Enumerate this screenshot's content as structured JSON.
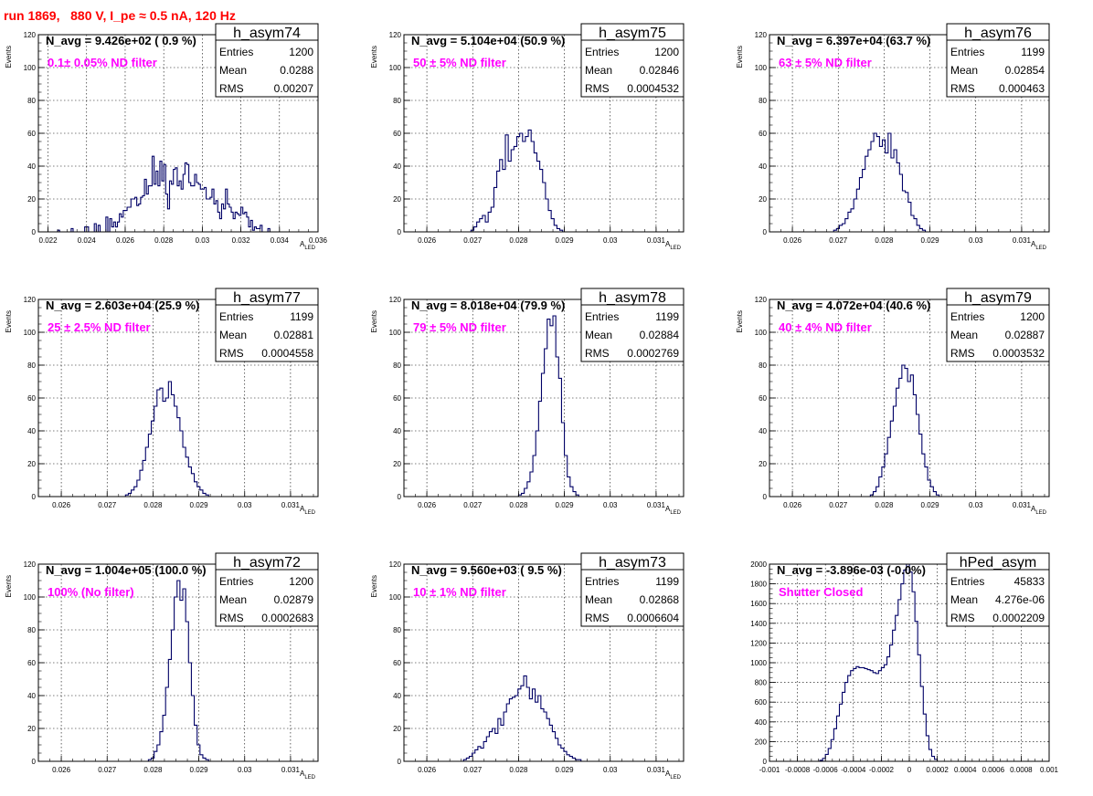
{
  "title": "run 1869,   880 V, I_pe ≈ 0.5 nA, 120 Hz",
  "chart_data": [
    {
      "type": "histogram",
      "name": "h_asym74",
      "navg": "N_avg = 9.426e+02 ( 0.9 %)",
      "filter": "0.1± 0.05% ND filter",
      "stats": [
        [
          "Entries",
          "1200"
        ],
        [
          "Mean",
          "0.0288"
        ],
        [
          "RMS",
          "0.00207"
        ]
      ],
      "ylabel": "Events",
      "xlabel": "A",
      "xlabel_sub": "LED",
      "xlim": [
        0.0215,
        0.036
      ],
      "ylim": [
        0,
        120
      ],
      "grid": true,
      "xticks": [
        0.022,
        0.024,
        0.026,
        0.028,
        0.03,
        0.032,
        0.034,
        0.036
      ],
      "xtick_labels": [
        "0.022",
        "0.024",
        "0.026",
        "0.028",
        "0.03",
        "0.032",
        "0.034",
        "0.036"
      ],
      "yticks": [
        0,
        20,
        40,
        60,
        80,
        100,
        120
      ],
      "ytick_labels": [
        "0",
        "20",
        "40",
        "60",
        "80",
        "100",
        "120"
      ],
      "bin_start": 0.0225,
      "bin_width": 0.0001,
      "counts": [
        1,
        0,
        0,
        0,
        0,
        0,
        0,
        2,
        0,
        0,
        0,
        0,
        0,
        0,
        3,
        3,
        0,
        0,
        0,
        5,
        0,
        4,
        0,
        0,
        0,
        9,
        0,
        8,
        3,
        6,
        3,
        6,
        11,
        9,
        13,
        13,
        15,
        15,
        20,
        20,
        21,
        16,
        17,
        21,
        22,
        32,
        23,
        28,
        28,
        46,
        29,
        37,
        28,
        43,
        31,
        41,
        23,
        14,
        31,
        29,
        38,
        39,
        28,
        31,
        26,
        35,
        42,
        41,
        30,
        28,
        28,
        35,
        30,
        29,
        26,
        26,
        27,
        20,
        20,
        21,
        26,
        17,
        19,
        12,
        8,
        17,
        14,
        26,
        17,
        15,
        12,
        8,
        12,
        11,
        10,
        15,
        11,
        12,
        9,
        3,
        7,
        1,
        3,
        2,
        2,
        4,
        0,
        0,
        0,
        2,
        0,
        0,
        0,
        0,
        0,
        0,
        0,
        0,
        0,
        0,
        0
      ]
    },
    {
      "type": "histogram",
      "name": "h_asym75",
      "navg": "N_avg = 5.104e+04 (50.9 %)",
      "filter": "50 ± 5% ND filter",
      "stats": [
        [
          "Entries",
          "1200"
        ],
        [
          "Mean",
          "0.02846"
        ],
        [
          "RMS",
          "0.0004532"
        ]
      ],
      "ylabel": "Events",
      "xlabel": "A",
      "xlabel_sub": "LED",
      "xlim": [
        0.0255,
        0.0316
      ],
      "ylim": [
        0,
        120
      ],
      "grid": true,
      "xticks": [
        0.026,
        0.027,
        0.028,
        0.029,
        0.03,
        0.031
      ],
      "xtick_labels": [
        "0.026",
        "0.027",
        "0.028",
        "0.029",
        "0.03",
        "0.031"
      ],
      "yticks": [
        0,
        20,
        40,
        60,
        80,
        100,
        120
      ],
      "ytick_labels": [
        "0",
        "20",
        "40",
        "60",
        "80",
        "100",
        "120"
      ],
      "bin_start": 0.0269,
      "bin_width": 6.25e-05,
      "counts": [
        0,
        1,
        3,
        6,
        8,
        10,
        6,
        12,
        15,
        27,
        37,
        44,
        38,
        59,
        43,
        50,
        52,
        58,
        60,
        55,
        58,
        62,
        55,
        48,
        43,
        38,
        30,
        20,
        13,
        8,
        4,
        2,
        1,
        0,
        0
      ]
    },
    {
      "type": "histogram",
      "name": "h_asym76",
      "navg": "N_avg = 6.397e+04 (63.7 %)",
      "filter": "63 ± 5% ND filter",
      "stats": [
        [
          "Entries",
          "1199"
        ],
        [
          "Mean",
          "0.02854"
        ],
        [
          "RMS",
          "0.000463"
        ]
      ],
      "ylabel": "Events",
      "xlabel": "A",
      "xlabel_sub": "LED",
      "xlim": [
        0.0255,
        0.0316
      ],
      "ylim": [
        0,
        120
      ],
      "grid": true,
      "xticks": [
        0.026,
        0.027,
        0.028,
        0.029,
        0.03,
        0.031
      ],
      "xtick_labels": [
        "0.026",
        "0.027",
        "0.028",
        "0.029",
        "0.03",
        "0.031"
      ],
      "yticks": [
        0,
        20,
        40,
        60,
        80,
        100,
        120
      ],
      "ytick_labels": [
        "0",
        "20",
        "40",
        "60",
        "80",
        "100",
        "120"
      ],
      "bin_start": 0.0269,
      "bin_width": 6.25e-05,
      "counts": [
        1,
        2,
        4,
        5,
        8,
        12,
        14,
        20,
        26,
        33,
        38,
        46,
        50,
        55,
        60,
        58,
        52,
        56,
        48,
        60,
        45,
        50,
        42,
        35,
        25,
        24,
        18,
        10,
        8,
        4,
        2,
        1,
        0
      ]
    },
    {
      "type": "histogram",
      "name": "h_asym77",
      "navg": "N_avg = 2.603e+04 (25.9 %)",
      "filter": "25 ± 2.5% ND filter",
      "stats": [
        [
          "Entries",
          "1199"
        ],
        [
          "Mean",
          "0.02881"
        ],
        [
          "RMS",
          "0.0004558"
        ]
      ],
      "ylabel": "Events",
      "xlabel": "A",
      "xlabel_sub": "LED",
      "xlim": [
        0.0255,
        0.0316
      ],
      "ylim": [
        0,
        120
      ],
      "grid": true,
      "xticks": [
        0.026,
        0.027,
        0.028,
        0.029,
        0.03,
        0.031
      ],
      "xtick_labels": [
        "0.026",
        "0.027",
        "0.028",
        "0.029",
        "0.03",
        "0.031"
      ],
      "yticks": [
        0,
        20,
        40,
        60,
        80,
        100,
        120
      ],
      "ytick_labels": [
        "0",
        "20",
        "40",
        "60",
        "80",
        "100",
        "120"
      ],
      "bin_start": 0.0274,
      "bin_width": 6.25e-05,
      "counts": [
        1,
        2,
        4,
        6,
        10,
        16,
        22,
        30,
        38,
        46,
        55,
        65,
        66,
        58,
        60,
        70,
        62,
        55,
        48,
        40,
        30,
        24,
        18,
        14,
        9,
        6,
        4,
        2,
        1,
        0
      ]
    },
    {
      "type": "histogram",
      "name": "h_asym78",
      "navg": "N_avg = 8.018e+04 (79.9 %)",
      "filter": "79 ± 5% ND filter",
      "stats": [
        [
          "Entries",
          "1199"
        ],
        [
          "Mean",
          "0.02884"
        ],
        [
          "RMS",
          "0.0002769"
        ]
      ],
      "ylabel": "Events",
      "xlabel": "A",
      "xlabel_sub": "LED",
      "xlim": [
        0.0255,
        0.0316
      ],
      "ylim": [
        0,
        120
      ],
      "grid": true,
      "xticks": [
        0.026,
        0.027,
        0.028,
        0.029,
        0.03,
        0.031
      ],
      "xtick_labels": [
        "0.026",
        "0.027",
        "0.028",
        "0.029",
        "0.03",
        "0.031"
      ],
      "yticks": [
        0,
        20,
        40,
        60,
        80,
        100,
        120
      ],
      "ytick_labels": [
        "0",
        "20",
        "40",
        "60",
        "80",
        "100",
        "120"
      ],
      "bin_start": 0.028,
      "bin_width": 6.25e-05,
      "counts": [
        1,
        2,
        5,
        9,
        15,
        25,
        40,
        58,
        75,
        90,
        108,
        104,
        110,
        85,
        72,
        45,
        25,
        12,
        6,
        3,
        1,
        0
      ]
    },
    {
      "type": "histogram",
      "name": "h_asym79",
      "navg": "N_avg = 4.072e+04 (40.6 %)",
      "filter": "40 ± 4% ND filter",
      "stats": [
        [
          "Entries",
          "1200"
        ],
        [
          "Mean",
          "0.02887"
        ],
        [
          "RMS",
          "0.0003532"
        ]
      ],
      "ylabel": "Events",
      "xlabel": "A",
      "xlabel_sub": "LED",
      "xlim": [
        0.0255,
        0.0316
      ],
      "ylim": [
        0,
        120
      ],
      "grid": true,
      "xticks": [
        0.026,
        0.027,
        0.028,
        0.029,
        0.03,
        0.031
      ],
      "xtick_labels": [
        "0.026",
        "0.027",
        "0.028",
        "0.029",
        "0.03",
        "0.031"
      ],
      "yticks": [
        0,
        20,
        40,
        60,
        80,
        100,
        120
      ],
      "ytick_labels": [
        "0",
        "20",
        "40",
        "60",
        "80",
        "100",
        "120"
      ],
      "bin_start": 0.0277,
      "bin_width": 6.25e-05,
      "counts": [
        1,
        3,
        6,
        12,
        18,
        26,
        36,
        46,
        55,
        66,
        72,
        80,
        78,
        70,
        74,
        62,
        50,
        38,
        26,
        18,
        10,
        6,
        3,
        1,
        0
      ]
    },
    {
      "type": "histogram",
      "name": "h_asym72",
      "navg": "N_avg = 1.004e+05 (100.0 %)",
      "filter": "100% (No filter)",
      "stats": [
        [
          "Entries",
          "1200"
        ],
        [
          "Mean",
          "0.02879"
        ],
        [
          "RMS",
          "0.0002683"
        ]
      ],
      "ylabel": "Events",
      "xlabel": "A",
      "xlabel_sub": "LED",
      "xlim": [
        0.0255,
        0.0316
      ],
      "ylim": [
        0,
        120
      ],
      "grid": true,
      "xticks": [
        0.026,
        0.027,
        0.028,
        0.029,
        0.03,
        0.031
      ],
      "xtick_labels": [
        "0.026",
        "0.027",
        "0.028",
        "0.029",
        "0.03",
        "0.031"
      ],
      "yticks": [
        0,
        20,
        40,
        60,
        80,
        100,
        120
      ],
      "ytick_labels": [
        "0",
        "20",
        "40",
        "60",
        "80",
        "100",
        "120"
      ],
      "bin_start": 0.0279,
      "bin_width": 6.25e-05,
      "counts": [
        1,
        2,
        6,
        10,
        18,
        28,
        45,
        62,
        80,
        100,
        110,
        98,
        105,
        85,
        60,
        40,
        22,
        10,
        4,
        2,
        1,
        0
      ]
    },
    {
      "type": "histogram",
      "name": "h_asym73",
      "navg": "N_avg = 9.560e+03 ( 9.5 %)",
      "filter": "10 ± 1% ND filter",
      "stats": [
        [
          "Entries",
          "1199"
        ],
        [
          "Mean",
          "0.02868"
        ],
        [
          "RMS",
          "0.0006604"
        ]
      ],
      "ylabel": "Events",
      "xlabel": "A",
      "xlabel_sub": "LED",
      "xlim": [
        0.0255,
        0.0316
      ],
      "ylim": [
        0,
        120
      ],
      "grid": true,
      "xticks": [
        0.026,
        0.027,
        0.028,
        0.029,
        0.03,
        0.031
      ],
      "xtick_labels": [
        "0.026",
        "0.027",
        "0.028",
        "0.029",
        "0.03",
        "0.031"
      ],
      "yticks": [
        0,
        20,
        40,
        60,
        80,
        100,
        120
      ],
      "ytick_labels": [
        "0",
        "20",
        "40",
        "60",
        "80",
        "100",
        "120"
      ],
      "bin_start": 0.0268,
      "bin_width": 6.25e-05,
      "counts": [
        1,
        2,
        3,
        5,
        7,
        9,
        8,
        12,
        15,
        18,
        20,
        17,
        26,
        22,
        30,
        35,
        38,
        39,
        40,
        44,
        46,
        52,
        45,
        38,
        44,
        36,
        40,
        32,
        30,
        26,
        22,
        18,
        14,
        10,
        8,
        6,
        4,
        3,
        2,
        1,
        1,
        0
      ]
    },
    {
      "type": "histogram",
      "name": "hPed_asym",
      "navg": "N_avg = -3.896e-03 (-0.0%)",
      "filter": "Shutter Closed",
      "stats": [
        [
          "Entries",
          "45833"
        ],
        [
          "Mean",
          "4.276e-06"
        ],
        [
          "RMS",
          "0.0002209"
        ]
      ],
      "ylabel": "",
      "xlabel": "",
      "xlabel_sub": "",
      "xlim": [
        -0.001,
        0.001
      ],
      "ylim": [
        0,
        2000
      ],
      "grid": true,
      "xticks": [
        -0.001,
        -0.0008,
        -0.0006,
        -0.0004,
        -0.0002,
        0,
        0.0002,
        0.0004,
        0.0006,
        0.0008,
        0.001
      ],
      "xtick_labels": [
        "-0.001",
        "-0.0008",
        "-0.0006",
        "-0.0004",
        "-0.0002",
        "0",
        "0.0002",
        "0.0004",
        "0.0006",
        "0.0008",
        "0.001"
      ],
      "yticks": [
        0,
        200,
        400,
        600,
        800,
        1000,
        1200,
        1400,
        1600,
        1800,
        2000
      ],
      "ytick_labels": [
        "0",
        "200",
        "400",
        "600",
        "800",
        "1000",
        "1200",
        "1400",
        "1600",
        "1800",
        "2000"
      ],
      "bin_start": -0.00064,
      "bin_width": 2e-05,
      "counts": [
        10,
        30,
        70,
        130,
        220,
        330,
        460,
        580,
        700,
        800,
        870,
        920,
        940,
        960,
        950,
        950,
        940,
        930,
        920,
        900,
        890,
        920,
        950,
        980,
        1060,
        1180,
        1330,
        1480,
        1640,
        1800,
        1940,
        2000,
        1920,
        1720,
        1420,
        1080,
        760,
        480,
        260,
        120,
        50,
        20,
        0
      ]
    }
  ]
}
